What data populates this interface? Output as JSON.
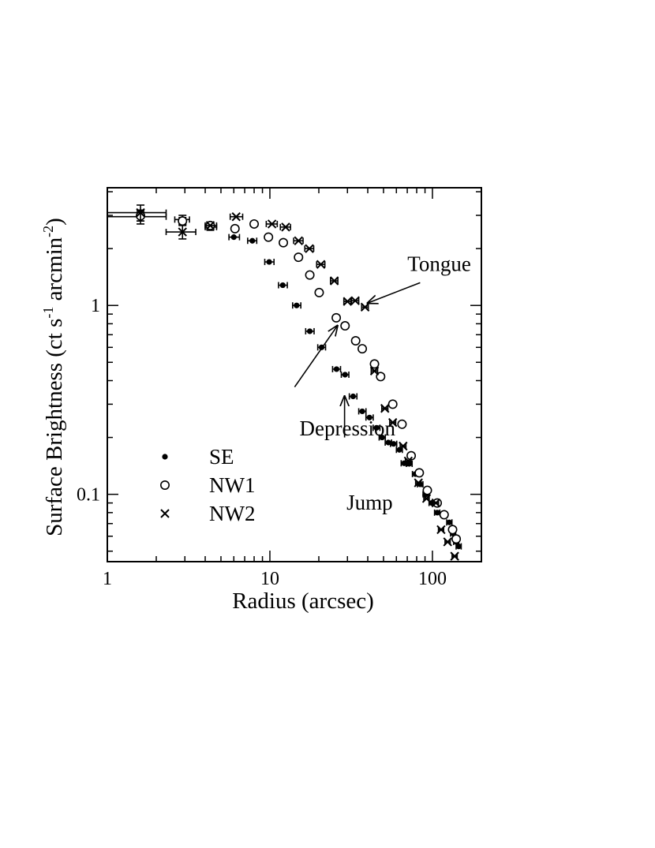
{
  "chart_data": {
    "type": "scatter",
    "title": "",
    "xlabel": "Radius (arcsec)",
    "ylabel": "Surface Brightness (ct s",
    "ylabel_sup1": "-1",
    "ylabel_mid": " arcmin",
    "ylabel_sup2": "-2",
    "ylabel_end": ")",
    "xscale": "log",
    "yscale": "log",
    "xlim": [
      1,
      200
    ],
    "ylim": [
      0.044,
      4.2
    ],
    "xticks": [
      {
        "value": 1,
        "label": "1"
      },
      {
        "value": 10,
        "label": "10"
      },
      {
        "value": 100,
        "label": "100"
      }
    ],
    "yticks": [
      {
        "value": 0.1,
        "label": "0.1"
      },
      {
        "value": 1,
        "label": "1"
      }
    ],
    "legend_position": "lower-left",
    "series": [
      {
        "name": "SE",
        "marker": "filled-circle",
        "points": [
          {
            "x": 1.6,
            "y": 2.95,
            "xlo": 1.0,
            "xhi": 2.3,
            "ylo": 2.7,
            "yhi": 3.2
          },
          {
            "x": 2.9,
            "y": 2.85,
            "xlo": 2.6,
            "xhi": 3.2,
            "ylo": 2.7,
            "yhi": 3.0
          },
          {
            "x": 4.3,
            "y": 2.6,
            "xlo": 4.0,
            "xhi": 4.7,
            "ylo": 2.5,
            "yhi": 2.72
          },
          {
            "x": 6.0,
            "y": 2.3,
            "xlo": 5.6,
            "xhi": 6.5
          },
          {
            "x": 7.8,
            "y": 2.2,
            "xlo": 7.3,
            "xhi": 8.3
          },
          {
            "x": 9.9,
            "y": 1.7,
            "xlo": 9.3,
            "xhi": 10.6
          },
          {
            "x": 12.0,
            "y": 1.28,
            "xlo": 11.3,
            "xhi": 12.8
          },
          {
            "x": 14.6,
            "y": 1.0,
            "xlo": 13.8,
            "xhi": 15.5
          },
          {
            "x": 17.6,
            "y": 0.73,
            "xlo": 16.6,
            "xhi": 18.7
          },
          {
            "x": 20.8,
            "y": 0.6,
            "xlo": 19.7,
            "xhi": 22.0
          },
          {
            "x": 25.7,
            "y": 0.46,
            "xlo": 24.3,
            "xhi": 27.2
          },
          {
            "x": 29.0,
            "y": 0.43,
            "xlo": 27.5,
            "xhi": 30.6
          },
          {
            "x": 32.5,
            "y": 0.33,
            "xlo": 30.8,
            "xhi": 34.3
          },
          {
            "x": 37.0,
            "y": 0.275,
            "xlo": 35.2,
            "xhi": 39.0
          },
          {
            "x": 41.0,
            "y": 0.255,
            "xlo": 39.0,
            "xhi": 43.2
          },
          {
            "x": 45.3,
            "y": 0.225,
            "xlo": 43.2,
            "xhi": 47.5
          },
          {
            "x": 49.0,
            "y": 0.2,
            "xlo": 47.0,
            "xhi": 51.3
          },
          {
            "x": 53.5,
            "y": 0.188,
            "xlo": 51.2,
            "xhi": 56.0
          },
          {
            "x": 57.7,
            "y": 0.185,
            "xlo": 55.2,
            "xhi": 60.3
          },
          {
            "x": 62.6,
            "y": 0.172,
            "xlo": 60.0,
            "xhi": 65.3
          },
          {
            "x": 67.0,
            "y": 0.146,
            "xlo": 64.2,
            "xhi": 70.0
          },
          {
            "x": 72.0,
            "y": 0.145,
            "xlo": 69.0,
            "xhi": 75.0
          },
          {
            "x": 78.5,
            "y": 0.128,
            "xlo": 75.3,
            "xhi": 81.8
          },
          {
            "x": 84.0,
            "y": 0.113,
            "xlo": 80.8,
            "xhi": 87.4
          },
          {
            "x": 91.0,
            "y": 0.1,
            "xlo": 87.5,
            "xhi": 94.6
          },
          {
            "x": 99.0,
            "y": 0.09,
            "xlo": 95.3,
            "xhi": 102.9
          },
          {
            "x": 107.0,
            "y": 0.08,
            "xlo": 103.0,
            "xhi": 111.0
          },
          {
            "x": 118.0,
            "y": 0.078,
            "xlo": 113.7,
            "xhi": 122.4
          },
          {
            "x": 127.0,
            "y": 0.071,
            "xlo": 122.4,
            "xhi": 131.8
          },
          {
            "x": 134.0,
            "y": 0.062,
            "xlo": 129.2,
            "xhi": 139.0
          },
          {
            "x": 140.0,
            "y": 0.056,
            "xlo": 135.0,
            "xhi": 145.2
          },
          {
            "x": 145.0,
            "y": 0.053,
            "xlo": 139.8,
            "xhi": 150.3
          }
        ]
      },
      {
        "name": "NW1",
        "marker": "open-circle",
        "points": [
          {
            "x": 1.6,
            "y": 2.98,
            "ylo": 2.8,
            "yhi": 3.15
          },
          {
            "x": 2.9,
            "y": 2.8,
            "ylo": 2.68,
            "yhi": 2.92
          },
          {
            "x": 4.3,
            "y": 2.65
          },
          {
            "x": 6.1,
            "y": 2.55
          },
          {
            "x": 8.0,
            "y": 2.7
          },
          {
            "x": 9.8,
            "y": 2.3
          },
          {
            "x": 12.1,
            "y": 2.15
          },
          {
            "x": 15.0,
            "y": 1.8
          },
          {
            "x": 17.6,
            "y": 1.45
          },
          {
            "x": 20.1,
            "y": 1.17
          },
          {
            "x": 25.6,
            "y": 0.86
          },
          {
            "x": 29.0,
            "y": 0.78
          },
          {
            "x": 33.7,
            "y": 0.65
          },
          {
            "x": 37.0,
            "y": 0.59
          },
          {
            "x": 44.0,
            "y": 0.49
          },
          {
            "x": 48.0,
            "y": 0.42
          },
          {
            "x": 57.0,
            "y": 0.3
          },
          {
            "x": 65.0,
            "y": 0.235
          },
          {
            "x": 74.0,
            "y": 0.16
          },
          {
            "x": 83.0,
            "y": 0.13
          },
          {
            "x": 93.0,
            "y": 0.105
          },
          {
            "x": 107.0,
            "y": 0.09
          },
          {
            "x": 118.0,
            "y": 0.078
          },
          {
            "x": 133.0,
            "y": 0.065
          },
          {
            "x": 140.0,
            "y": 0.058
          }
        ]
      },
      {
        "name": "NW2",
        "marker": "cross",
        "points": [
          {
            "x": 1.6,
            "y": 3.1,
            "xlo": 1.0,
            "xhi": 2.3,
            "ylo": 2.8,
            "yhi": 3.4
          },
          {
            "x": 2.9,
            "y": 2.45,
            "xlo": 2.3,
            "xhi": 3.5,
            "ylo": 2.25,
            "yhi": 2.65
          },
          {
            "x": 4.3,
            "y": 2.65,
            "xlo": 4.0,
            "xhi": 4.7
          },
          {
            "x": 6.2,
            "y": 2.95,
            "xlo": 5.7,
            "xhi": 6.8
          },
          {
            "x": 10.3,
            "y": 2.7,
            "xlo": 9.5,
            "xhi": 11.1
          },
          {
            "x": 12.5,
            "y": 2.6,
            "xlo": 11.6,
            "xhi": 13.4
          },
          {
            "x": 15.0,
            "y": 2.2,
            "xlo": 14.0,
            "xhi": 16.0
          },
          {
            "x": 17.5,
            "y": 2.0,
            "xlo": 16.4,
            "xhi": 18.6
          },
          {
            "x": 20.6,
            "y": 1.65,
            "xlo": 19.4,
            "xhi": 21.8
          },
          {
            "x": 24.9,
            "y": 1.35,
            "xlo": 23.6,
            "xhi": 26.2
          },
          {
            "x": 30.0,
            "y": 1.05,
            "xlo": 28.5,
            "xhi": 31.5
          },
          {
            "x": 33.5,
            "y": 1.06,
            "xlo": 31.8,
            "xhi": 35.2
          },
          {
            "x": 38.5,
            "y": 0.98,
            "xlo": 36.7,
            "xhi": 40.3
          },
          {
            "x": 44.0,
            "y": 0.45,
            "xlo": 42.0,
            "xhi": 46.0
          },
          {
            "x": 51.0,
            "y": 0.285,
            "xlo": 48.8,
            "xhi": 53.2
          },
          {
            "x": 57.0,
            "y": 0.24,
            "xlo": 54.6,
            "xhi": 59.4
          },
          {
            "x": 66.0,
            "y": 0.18,
            "xlo": 63.3,
            "xhi": 68.7
          },
          {
            "x": 71.0,
            "y": 0.15,
            "xlo": 68.2,
            "xhi": 73.8
          },
          {
            "x": 82.0,
            "y": 0.115,
            "xlo": 78.8,
            "xhi": 85.2
          },
          {
            "x": 92.0,
            "y": 0.095,
            "xlo": 88.5,
            "xhi": 95.5
          },
          {
            "x": 105.0,
            "y": 0.09,
            "xlo": 101.0,
            "xhi": 109.0
          },
          {
            "x": 113.0,
            "y": 0.065,
            "xlo": 108.9,
            "xhi": 117.2
          },
          {
            "x": 124.0,
            "y": 0.056,
            "xlo": 119.5,
            "xhi": 128.6
          },
          {
            "x": 137.0,
            "y": 0.047,
            "xlo": 132.1,
            "xhi": 142.0
          }
        ]
      }
    ],
    "annotations": [
      {
        "text": "Tongue",
        "x": 110,
        "y": 1.52,
        "align": "middle",
        "arrow_from": [
          84,
          1.32
        ],
        "arrow_to": [
          40,
          1.03
        ]
      },
      {
        "text": "Depression",
        "x": 30,
        "y": 0.205,
        "align": "middle",
        "arrow_from": [
          14.2,
          0.37
        ],
        "arrow_to": [
          26,
          0.78
        ]
      },
      {
        "text": "Jump",
        "x": 57,
        "y": 0.083,
        "align": "end",
        "arrow_from": [
          28.8,
          0.2
        ],
        "arrow_to": [
          28.8,
          0.33
        ]
      }
    ],
    "legend": [
      {
        "label": "SE",
        "marker": "filled-circle"
      },
      {
        "label": "NW1",
        "marker": "open-circle"
      },
      {
        "label": "NW2",
        "marker": "cross"
      }
    ]
  }
}
